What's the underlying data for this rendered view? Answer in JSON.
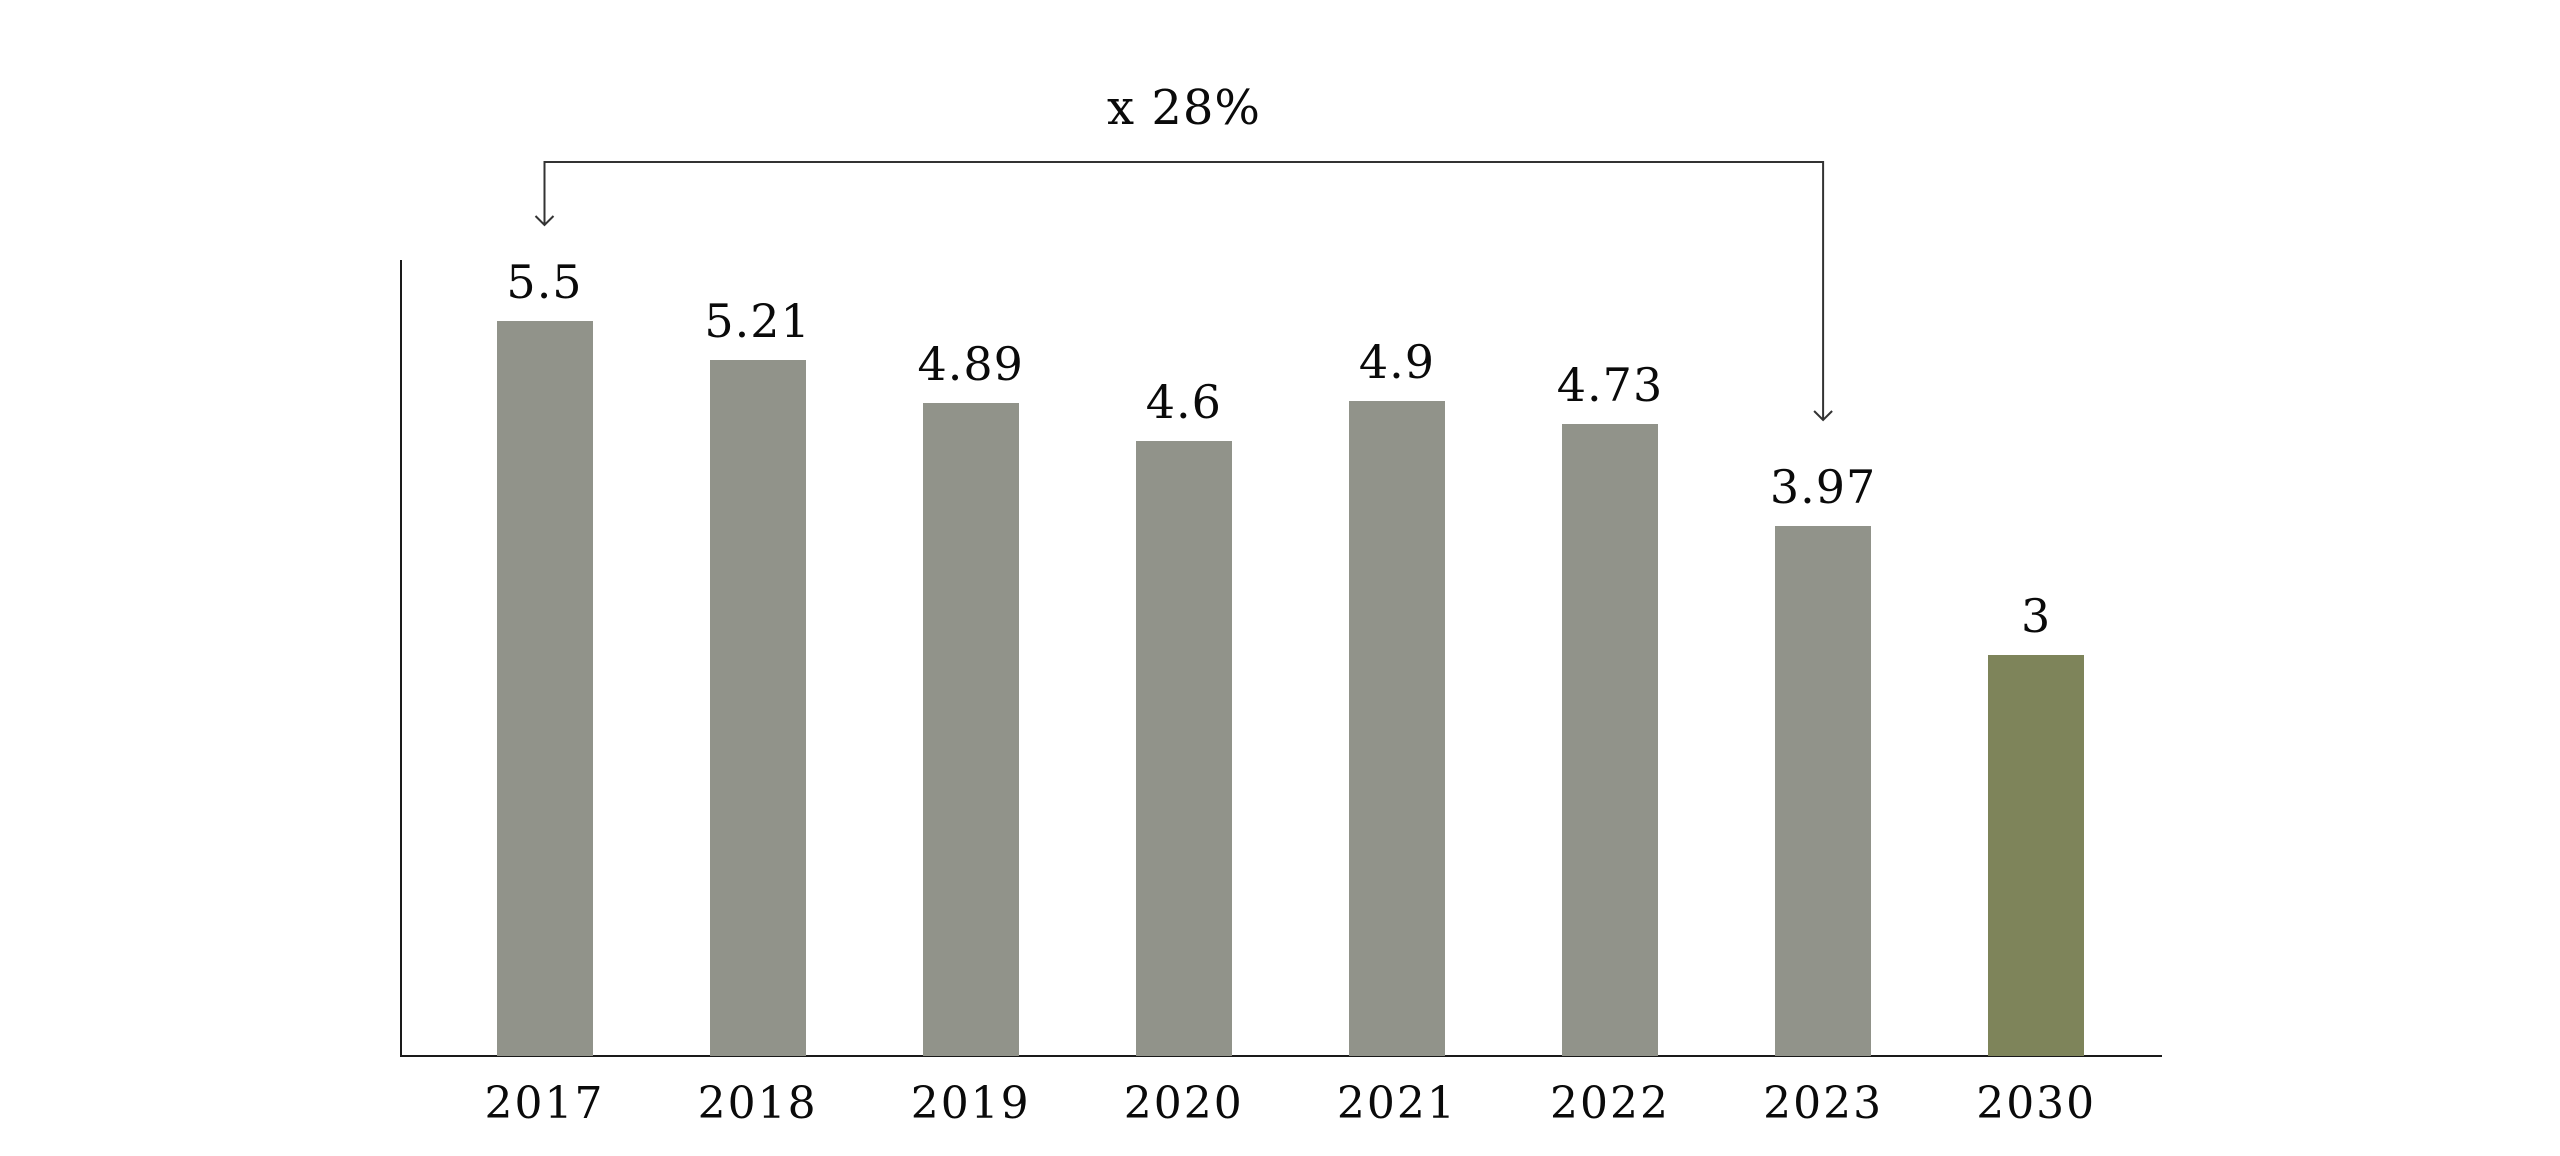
{
  "chart_data": {
    "type": "bar",
    "title": "",
    "xlabel": "",
    "ylabel": "",
    "categories": [
      "2017",
      "2018",
      "2019",
      "2020",
      "2021",
      "2022",
      "2023",
      "2030"
    ],
    "values": [
      5.5,
      5.21,
      4.89,
      4.6,
      4.9,
      4.73,
      3.97,
      3
    ],
    "value_labels": [
      "5.5",
      "5.21",
      "4.89",
      "4.6",
      "4.9",
      "4.73",
      "3.97",
      "3"
    ],
    "ylim": [
      0,
      6
    ],
    "grid": false,
    "legend": false,
    "y_ticks_visible": false,
    "highlight_category": "2030",
    "colors": {
      "bar_default": "#91938a",
      "bar_highlight": "#7e845a",
      "axis": "#1a1a1a",
      "text": "#0a0a0a",
      "annotation_line": "#333333"
    },
    "annotation": {
      "label": "x 28%",
      "from_category": "2017",
      "to_category": "2023"
    }
  }
}
